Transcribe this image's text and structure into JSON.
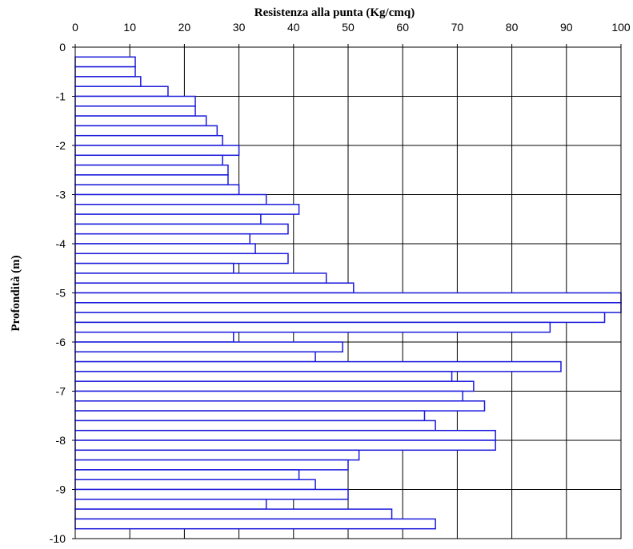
{
  "chart_data": {
    "type": "bar",
    "orientation": "horizontal",
    "title": "Resistenza alla punta (Kg/cmq)",
    "xlabel": "Resistenza alla punta (Kg/cmq)",
    "ylabel": "Profondità (m)",
    "x_axis_position": "top",
    "xlim": [
      0,
      100
    ],
    "ylim": [
      -10,
      0
    ],
    "xticks": [
      "0",
      "10",
      "20",
      "30",
      "40",
      "50",
      "60",
      "70",
      "80",
      "90",
      "100"
    ],
    "yticks": [
      "0",
      "-1",
      "-2",
      "-3",
      "-4",
      "-5",
      "-6",
      "-7",
      "-8",
      "-9",
      "-10"
    ],
    "grid": true,
    "bar_color": "#1a1adc",
    "bar_fill": "#ffffff",
    "bar_thickness_m": 0.2,
    "series": [
      {
        "depths": [
          -0.2,
          -0.4,
          -0.6,
          -0.8,
          -1.0,
          -1.2,
          -1.4,
          -1.6,
          -1.8,
          -2.0,
          -2.2,
          -2.4,
          -2.6,
          -2.8,
          -3.0,
          -3.2,
          -3.4,
          -3.6,
          -3.8,
          -4.0,
          -4.2,
          -4.4,
          -4.6,
          -4.8,
          -5.0,
          -5.2,
          -5.4,
          -5.6,
          -5.8,
          -6.0,
          -6.2,
          -6.4,
          -6.6,
          -6.8,
          -7.0,
          -7.2,
          -7.4,
          -7.6,
          -7.8,
          -8.0,
          -8.2,
          -8.4,
          -8.6,
          -8.8,
          -9.0,
          -9.2,
          -9.4,
          -9.6,
          -9.8
        ],
        "values": [
          11,
          11,
          12,
          17,
          22,
          22,
          24,
          26,
          27,
          30,
          27,
          28,
          28,
          30,
          35,
          41,
          34,
          39,
          32,
          33,
          39,
          29,
          46,
          51,
          101,
          101,
          97,
          87,
          29,
          49,
          44,
          89,
          69,
          73,
          71,
          75,
          64,
          66,
          77,
          77,
          52,
          50,
          41,
          44,
          50,
          35,
          58,
          66,
          0
        ]
      }
    ]
  }
}
